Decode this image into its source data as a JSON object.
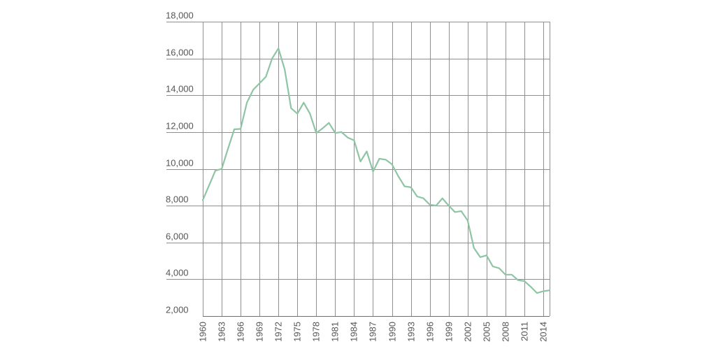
{
  "chart_data": {
    "type": "line",
    "title": "",
    "xlabel": "",
    "ylabel": "",
    "grid": true,
    "legend": "none",
    "xlim": [
      1960,
      2015
    ],
    "ylim": [
      2000,
      18000
    ],
    "y_ticks": [
      "18,000",
      "16,000",
      "14,000",
      "12,000",
      "10,000",
      "8,000",
      "6,000",
      "4,000",
      "2,000"
    ],
    "y_tick_values": [
      18000,
      16000,
      14000,
      12000,
      10000,
      8000,
      6000,
      4000,
      2000
    ],
    "x_ticks": [
      "1960",
      "1963",
      "1966",
      "1969",
      "1972",
      "1975",
      "1978",
      "1981",
      "1984",
      "1987",
      "1990",
      "1993",
      "1996",
      "1999",
      "2002",
      "2005",
      "2008",
      "2011",
      "2014"
    ],
    "x_tick_values": [
      1960,
      1963,
      1966,
      1969,
      1972,
      1975,
      1978,
      1981,
      1984,
      1987,
      1990,
      1993,
      1996,
      1999,
      2002,
      2005,
      2008,
      2011,
      2014
    ],
    "series": [
      {
        "color": "#8fc4a5",
        "x": [
          1960,
          1961,
          1962,
          1963,
          1964,
          1965,
          1966,
          1967,
          1968,
          1969,
          1970,
          1971,
          1972,
          1973,
          1974,
          1975,
          1976,
          1977,
          1978,
          1979,
          1980,
          1981,
          1982,
          1983,
          1984,
          1985,
          1986,
          1987,
          1988,
          1989,
          1990,
          1991,
          1992,
          1993,
          1994,
          1995,
          1996,
          1997,
          1998,
          1999,
          2000,
          2001,
          2002,
          2003,
          2004,
          2005,
          2006,
          2007,
          2008,
          2009,
          2010,
          2011,
          2012,
          2013,
          2014,
          2015
        ],
        "values": [
          8300,
          9100,
          9900,
          10000,
          11100,
          12150,
          12170,
          13600,
          14300,
          14650,
          15000,
          16000,
          16550,
          15400,
          13300,
          13000,
          13600,
          13000,
          11950,
          12200,
          12500,
          11950,
          12000,
          11700,
          11550,
          10400,
          10950,
          9850,
          10550,
          10500,
          10250,
          9600,
          9050,
          9000,
          8500,
          8400,
          8050,
          8000,
          8400,
          8000,
          7650,
          7700,
          7200,
          5700,
          5200,
          5300,
          4700,
          4600,
          4250,
          4250,
          3950,
          3900,
          3600,
          3250,
          3350,
          3400
        ]
      }
    ]
  }
}
